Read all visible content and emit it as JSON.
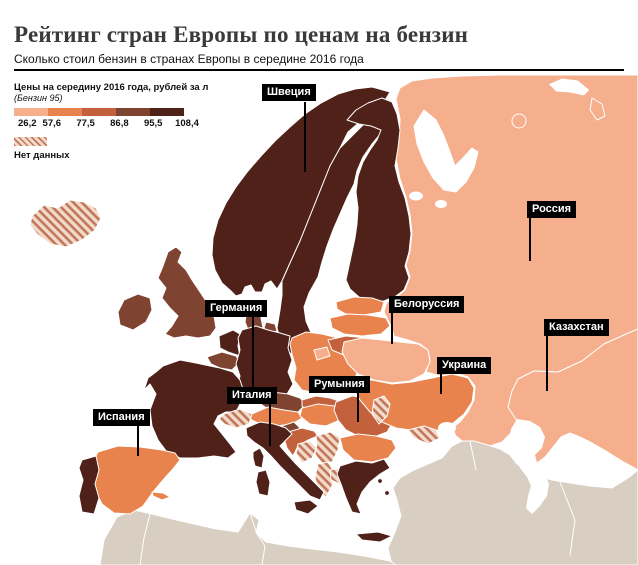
{
  "header": {
    "title": "Рейтинг стран Европы по ценам на бензин",
    "subtitle": "Сколько стоил бензин в странах Европы в середине 2016 года"
  },
  "legend": {
    "title": "Цены на середину 2016 года, рублей за л",
    "subtitle": "(Бензин 95)",
    "ticks": [
      "26,2",
      "57,6",
      "77,5",
      "86,8",
      "95,5",
      "108,4"
    ],
    "bucket_colors": [
      "#F6AF8D",
      "#E8834E",
      "#C2613B",
      "#7E4331",
      "#4F2118"
    ],
    "no_data_label": "Нет данных",
    "no_data": {
      "bg": "#F3DACA",
      "stripe": "#C1785A"
    }
  },
  "map": {
    "sea_color": "#FFFFFF",
    "outside_color": "#D8CEC1",
    "border_color": "#FFFFFF",
    "labels": [
      {
        "id": "sweden",
        "text": "Швеция"
      },
      {
        "id": "russia",
        "text": "Россия"
      },
      {
        "id": "belarus",
        "text": "Белоруссия"
      },
      {
        "id": "kazakhstan",
        "text": "Казахстан"
      },
      {
        "id": "ukraine",
        "text": "Украина"
      },
      {
        "id": "germany",
        "text": "Германия"
      },
      {
        "id": "italy",
        "text": "Италия"
      },
      {
        "id": "romania",
        "text": "Румыния"
      },
      {
        "id": "spain",
        "text": "Испания"
      }
    ],
    "regions": {
      "russia": 1,
      "kazakhstan": 1,
      "belarus": 1,
      "kaliningrad": 1,
      "kolguyev": 1,
      "novaya-zemlya-2": 1,
      "novaya-zemlya-1": "sea-island",
      "ukraine": 2,
      "poland": 2,
      "estonia": 2,
      "latvia": 2,
      "hungary": 2,
      "austria": 2,
      "bulgaria": 2,
      "spain": 2,
      "balearics": 2,
      "lithuania": 3,
      "slovakia": 3,
      "croatia": 3,
      "romania": 3,
      "uk": 4,
      "ireland": 4,
      "belgium": 4,
      "denmark": 4,
      "denmark-island": 4,
      "czech": 4,
      "slovenia": 4,
      "norway": 5,
      "sweden": 5,
      "finland": 5,
      "germany": 5,
      "france": 5,
      "corsica": 5,
      "netherlands": 5,
      "portugal": 5,
      "italy": 5,
      "sicily": 5,
      "sardinia": 5,
      "greece": 5,
      "crete": 5,
      "aegean-island-1": 5,
      "aegean-island-2": 5,
      "iceland": "no-data",
      "switzerland": "no-data",
      "moldova": "no-data",
      "bosnia": "no-data",
      "serbia": "no-data",
      "montenegro-albania": "no-data",
      "macedonia": "no-data",
      "crimea": "no-data",
      "southeast": "outside",
      "north-africa": "outside"
    }
  }
}
